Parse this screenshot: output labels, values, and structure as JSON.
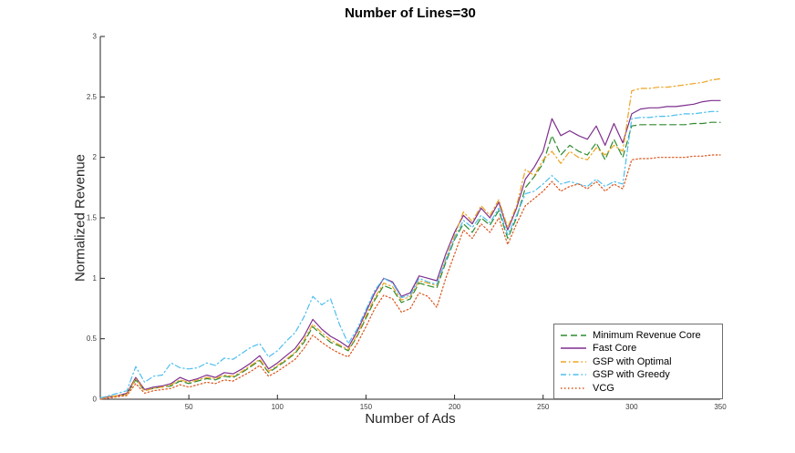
{
  "figure": {
    "background": "#ffffff"
  },
  "axis": {
    "line_color": "#262626",
    "tick_label_color": "#3c3c3c"
  },
  "chart_data": {
    "type": "line",
    "title": "Number of Lines=30",
    "xlabel": "Number of Ads",
    "ylabel": "Normalized Revenue",
    "xlim": [
      0,
      350
    ],
    "ylim": [
      0,
      3
    ],
    "xticks": [
      50,
      100,
      150,
      200,
      250,
      300,
      350
    ],
    "yticks": [
      0,
      0.5,
      1,
      1.5,
      2,
      2.5,
      3
    ],
    "grid": false,
    "legend_position": "bottom-right-inside",
    "x": [
      0,
      5,
      10,
      15,
      20,
      25,
      30,
      35,
      40,
      45,
      50,
      55,
      60,
      65,
      70,
      75,
      80,
      85,
      90,
      95,
      100,
      105,
      110,
      115,
      120,
      125,
      130,
      135,
      140,
      145,
      150,
      155,
      160,
      165,
      170,
      175,
      180,
      185,
      190,
      195,
      200,
      205,
      210,
      215,
      220,
      225,
      230,
      235,
      240,
      245,
      250,
      255,
      260,
      265,
      270,
      275,
      280,
      285,
      290,
      295,
      300,
      305,
      310,
      315,
      320,
      325,
      330,
      335,
      340,
      345,
      350
    ],
    "series": [
      {
        "name": "Minimum Revenue Core",
        "color": "#2e8b2e",
        "style": "dashed",
        "dash": "7,4",
        "values": [
          0.01,
          0.02,
          0.03,
          0.04,
          0.16,
          0.07,
          0.09,
          0.1,
          0.11,
          0.15,
          0.13,
          0.15,
          0.17,
          0.16,
          0.19,
          0.18,
          0.22,
          0.27,
          0.32,
          0.22,
          0.27,
          0.32,
          0.38,
          0.47,
          0.6,
          0.53,
          0.47,
          0.44,
          0.4,
          0.52,
          0.67,
          0.82,
          0.94,
          0.91,
          0.8,
          0.83,
          0.96,
          0.94,
          0.92,
          1.13,
          1.32,
          1.45,
          1.38,
          1.5,
          1.44,
          1.56,
          1.33,
          1.5,
          1.75,
          1.84,
          1.95,
          2.18,
          2.02,
          2.1,
          2.05,
          2.02,
          2.12,
          1.98,
          2.15,
          2.0,
          2.26,
          2.27,
          2.27,
          2.27,
          2.27,
          2.27,
          2.27,
          2.28,
          2.28,
          2.29,
          2.29
        ]
      },
      {
        "name": "Fast Core",
        "color": "#7e2f8e",
        "style": "solid",
        "dash": "",
        "values": [
          0.01,
          0.02,
          0.03,
          0.05,
          0.18,
          0.08,
          0.1,
          0.11,
          0.13,
          0.18,
          0.15,
          0.17,
          0.2,
          0.18,
          0.22,
          0.21,
          0.25,
          0.3,
          0.36,
          0.25,
          0.3,
          0.36,
          0.42,
          0.52,
          0.66,
          0.58,
          0.52,
          0.48,
          0.43,
          0.56,
          0.72,
          0.88,
          1.0,
          0.97,
          0.85,
          0.88,
          1.02,
          1.0,
          0.98,
          1.2,
          1.38,
          1.52,
          1.45,
          1.58,
          1.5,
          1.63,
          1.4,
          1.58,
          1.82,
          1.92,
          2.05,
          2.32,
          2.18,
          2.22,
          2.18,
          2.15,
          2.26,
          2.1,
          2.28,
          2.12,
          2.36,
          2.4,
          2.41,
          2.41,
          2.42,
          2.42,
          2.43,
          2.44,
          2.46,
          2.47,
          2.47
        ]
      },
      {
        "name": "GSP with Optimal",
        "color": "#eda320",
        "style": "dash-dot",
        "dash": "6,3,1.5,3",
        "values": [
          0.01,
          0.02,
          0.03,
          0.04,
          0.17,
          0.07,
          0.09,
          0.1,
          0.12,
          0.16,
          0.14,
          0.16,
          0.18,
          0.17,
          0.2,
          0.19,
          0.23,
          0.28,
          0.33,
          0.23,
          0.28,
          0.33,
          0.39,
          0.49,
          0.62,
          0.55,
          0.49,
          0.45,
          0.41,
          0.53,
          0.69,
          0.84,
          0.96,
          0.93,
          0.82,
          0.85,
          0.98,
          0.96,
          0.94,
          1.16,
          1.35,
          1.55,
          1.47,
          1.6,
          1.52,
          1.65,
          1.42,
          1.6,
          1.9,
          1.85,
          1.98,
          2.05,
          1.95,
          2.05,
          2.0,
          1.98,
          2.08,
          2.02,
          2.1,
          2.05,
          2.55,
          2.57,
          2.57,
          2.58,
          2.58,
          2.59,
          2.6,
          2.61,
          2.62,
          2.64,
          2.65
        ]
      },
      {
        "name": "GSP with Greedy",
        "color": "#4dbeee",
        "style": "dash-dot",
        "dash": "6,3,1.5,3",
        "values": [
          0.01,
          0.03,
          0.05,
          0.07,
          0.27,
          0.14,
          0.19,
          0.2,
          0.3,
          0.26,
          0.25,
          0.26,
          0.3,
          0.28,
          0.34,
          0.33,
          0.38,
          0.43,
          0.46,
          0.35,
          0.4,
          0.48,
          0.55,
          0.68,
          0.85,
          0.78,
          0.83,
          0.62,
          0.46,
          0.58,
          0.74,
          0.9,
          1.0,
          0.96,
          0.84,
          0.86,
          1.0,
          0.97,
          0.95,
          1.15,
          1.33,
          1.48,
          1.42,
          1.52,
          1.46,
          1.58,
          1.36,
          1.52,
          1.7,
          1.72,
          1.78,
          1.85,
          1.78,
          1.8,
          1.78,
          1.76,
          1.82,
          1.76,
          1.8,
          1.78,
          2.32,
          2.33,
          2.33,
          2.34,
          2.34,
          2.35,
          2.36,
          2.36,
          2.37,
          2.38,
          2.38
        ]
      },
      {
        "name": "VCG",
        "color": "#d95319",
        "style": "dotted",
        "dash": "1.5,2.5",
        "values": [
          0.0,
          0.01,
          0.02,
          0.03,
          0.13,
          0.05,
          0.07,
          0.08,
          0.09,
          0.12,
          0.1,
          0.12,
          0.14,
          0.13,
          0.16,
          0.15,
          0.19,
          0.23,
          0.28,
          0.19,
          0.23,
          0.28,
          0.33,
          0.42,
          0.53,
          0.47,
          0.42,
          0.38,
          0.35,
          0.46,
          0.6,
          0.75,
          0.86,
          0.83,
          0.72,
          0.75,
          0.88,
          0.85,
          0.76,
          1.0,
          1.2,
          1.4,
          1.33,
          1.45,
          1.38,
          1.5,
          1.28,
          1.45,
          1.6,
          1.66,
          1.72,
          1.8,
          1.72,
          1.76,
          1.78,
          1.74,
          1.8,
          1.72,
          1.78,
          1.74,
          1.98,
          1.99,
          1.99,
          2.0,
          2.0,
          2.0,
          2.0,
          2.01,
          2.01,
          2.02,
          2.02
        ]
      }
    ]
  }
}
